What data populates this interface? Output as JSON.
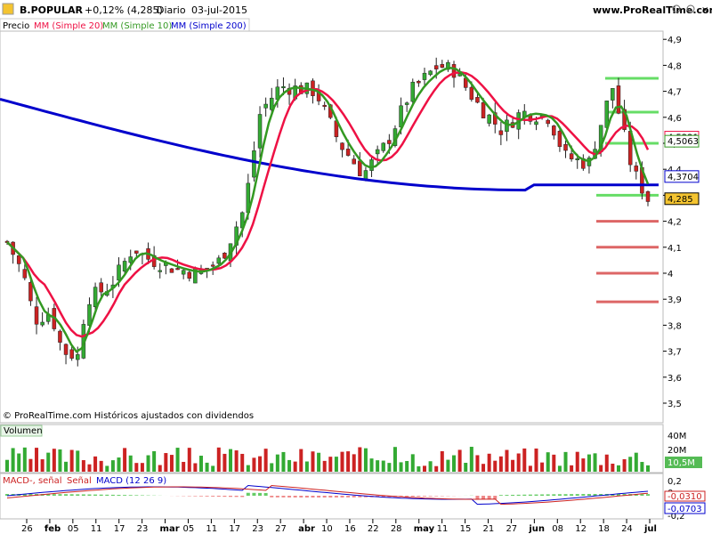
{
  "header": {
    "symbol": "B.POPULAR",
    "change": "+0,12% (4,285)",
    "period": "Diario",
    "date": "03-jul-2015",
    "site": "www.ProRealTime.com"
  },
  "legend": {
    "price": "Precio",
    "ma20": "MM (Simple 20)",
    "ma10": "MM (Simple 10)",
    "ma200": "MM (Simple 200)"
  },
  "copyright": "© ProRealTime.com  Históricos ajustados con dividendos",
  "volume_panel": {
    "title": "Volumen",
    "ticks": [
      "40M",
      "20M"
    ],
    "current": "10,5M"
  },
  "macd_panel": {
    "labels": [
      "MACD-, señal",
      "Señal",
      "MACD (12 26 9)"
    ],
    "ticks": [
      "0,2",
      "0",
      "-0,2"
    ],
    "values": [
      "-0,0310",
      "-0,0703"
    ]
  },
  "price_axis": {
    "ticks": [
      "4,9",
      "4,8",
      "4,7",
      "4,6",
      "4,5",
      "4,4",
      "4,3",
      "4,2",
      "4,1",
      "4",
      "3,9",
      "3,8",
      "3,7",
      "3,6",
      "3,5"
    ],
    "badges": [
      "4,5221",
      "4,5063",
      "4,3704",
      "4,285"
    ]
  },
  "date_axis": [
    "26",
    "feb",
    "05",
    "11",
    "17",
    "23",
    "mar",
    "05",
    "11",
    "17",
    "23",
    "27",
    "abr",
    "10",
    "16",
    "22",
    "28",
    "may",
    "11",
    "15",
    "21",
    "27",
    "jun",
    "08",
    "12",
    "18",
    "24",
    "jul"
  ],
  "colors": {
    "ma200": "#0000cc",
    "ma20": "#ee1144",
    "ma10": "#339922",
    "up": "#33aa33",
    "down": "#cc2222",
    "support": "#dd6666",
    "resistance": "#66dd66"
  },
  "chart_data": {
    "type": "candlestick",
    "title": "B.POPULAR",
    "y_range": [
      3.5,
      4.9
    ],
    "period": "daily",
    "x_start": "2015-01-22",
    "x_end": "2015-07-03",
    "last_close": 4.285,
    "ma20_last": 4.5221,
    "ma10_last": 4.5063,
    "ma200_last": 4.3704,
    "close_points": [
      {
        "date": "2015-01-22",
        "close": 4.12
      },
      {
        "date": "2015-01-26",
        "close": 4.0
      },
      {
        "date": "2015-01-29",
        "close": 3.82
      },
      {
        "date": "2015-02-02",
        "close": 3.85
      },
      {
        "date": "2015-02-05",
        "close": 3.7
      },
      {
        "date": "2015-02-09",
        "close": 3.68
      },
      {
        "date": "2015-02-11",
        "close": 3.9
      },
      {
        "date": "2015-02-17",
        "close": 3.95
      },
      {
        "date": "2015-02-23",
        "close": 4.1
      },
      {
        "date": "2015-02-26",
        "close": 4.06
      },
      {
        "date": "2015-03-05",
        "close": 4.02
      },
      {
        "date": "2015-03-11",
        "close": 4.0
      },
      {
        "date": "2015-03-17",
        "close": 4.05
      },
      {
        "date": "2015-03-23",
        "close": 4.25
      },
      {
        "date": "2015-03-27",
        "close": 4.62
      },
      {
        "date": "2015-04-01",
        "close": 4.72
      },
      {
        "date": "2015-04-10",
        "close": 4.7
      },
      {
        "date": "2015-04-16",
        "close": 4.5
      },
      {
        "date": "2015-04-22",
        "close": 4.38
      },
      {
        "date": "2015-04-28",
        "close": 4.5
      },
      {
        "date": "2015-05-04",
        "close": 4.7
      },
      {
        "date": "2015-05-11",
        "close": 4.8
      },
      {
        "date": "2015-05-15",
        "close": 4.78
      },
      {
        "date": "2015-05-21",
        "close": 4.65
      },
      {
        "date": "2015-05-27",
        "close": 4.55
      },
      {
        "date": "2015-06-01",
        "close": 4.62
      },
      {
        "date": "2015-06-08",
        "close": 4.6
      },
      {
        "date": "2015-06-12",
        "close": 4.45
      },
      {
        "date": "2015-06-18",
        "close": 4.42
      },
      {
        "date": "2015-06-24",
        "close": 4.72
      },
      {
        "date": "2015-06-29",
        "close": 4.4
      },
      {
        "date": "2015-07-03",
        "close": 4.285
      }
    ],
    "support_levels": [
      4.3,
      4.2,
      4.1,
      4.0,
      3.89
    ],
    "resistance_levels": [
      4.75,
      4.62,
      4.5
    ]
  }
}
